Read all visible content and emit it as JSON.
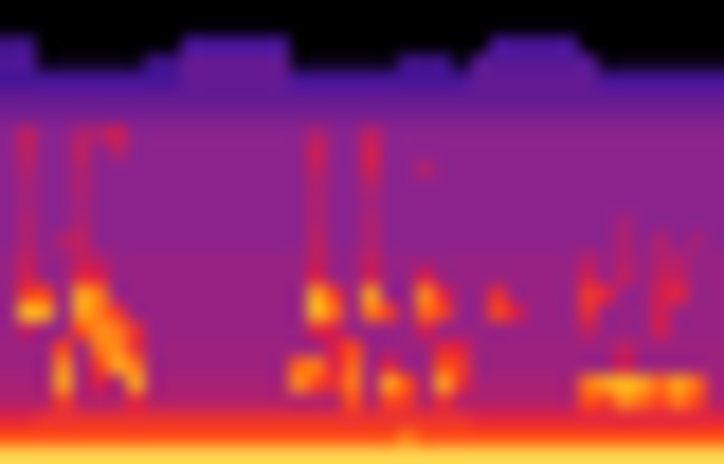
{
  "chart_data": {
    "type": "heatmap",
    "tick_labels": false,
    "grid": false,
    "zlim": [
      0,
      100
    ],
    "cells": [
      [
        0,
        0,
        0,
        0,
        0,
        0,
        0,
        0,
        0,
        0,
        0,
        0,
        0,
        0,
        0,
        0,
        0,
        0,
        0,
        0,
        0,
        0,
        0,
        0,
        0,
        0,
        0,
        0,
        0,
        0,
        0,
        0,
        0,
        0,
        0,
        0,
        0,
        0,
        0,
        0
      ],
      [
        0,
        0,
        0,
        0,
        0,
        0,
        0,
        0,
        0,
        0,
        0,
        0,
        0,
        0,
        0,
        0,
        0,
        0,
        0,
        0,
        0,
        0,
        0,
        0,
        0,
        0,
        0,
        0,
        0,
        0,
        0,
        0,
        0,
        0,
        0,
        0,
        0,
        0,
        0,
        0
      ],
      [
        25,
        25,
        0,
        0,
        0,
        0,
        0,
        0,
        0,
        0,
        28,
        28,
        28,
        28,
        28,
        28,
        0,
        0,
        0,
        0,
        0,
        0,
        0,
        0,
        0,
        0,
        0,
        28,
        28,
        28,
        28,
        28,
        0,
        0,
        0,
        0,
        0,
        0,
        0,
        0
      ],
      [
        30,
        30,
        5,
        5,
        5,
        5,
        5,
        5,
        25,
        25,
        35,
        35,
        35,
        35,
        35,
        35,
        5,
        5,
        5,
        5,
        5,
        5,
        25,
        25,
        25,
        5,
        32,
        32,
        32,
        32,
        32,
        32,
        32,
        5,
        5,
        5,
        5,
        5,
        5,
        5
      ],
      [
        28,
        28,
        28,
        28,
        28,
        28,
        28,
        28,
        28,
        28,
        35,
        35,
        35,
        35,
        35,
        35,
        28,
        28,
        28,
        28,
        28,
        28,
        28,
        28,
        28,
        28,
        35,
        35,
        35,
        35,
        35,
        35,
        35,
        28,
        28,
        28,
        28,
        28,
        28,
        28
      ],
      [
        35,
        35,
        35,
        35,
        35,
        35,
        35,
        35,
        35,
        35,
        35,
        35,
        35,
        35,
        35,
        35,
        35,
        35,
        35,
        35,
        35,
        35,
        35,
        35,
        35,
        35,
        35,
        35,
        35,
        35,
        35,
        35,
        35,
        35,
        35,
        35,
        35,
        35,
        35,
        35
      ],
      [
        40,
        40,
        40,
        40,
        40,
        40,
        40,
        40,
        40,
        40,
        40,
        40,
        40,
        40,
        40,
        40,
        40,
        40,
        40,
        40,
        40,
        40,
        40,
        40,
        40,
        40,
        40,
        40,
        40,
        40,
        40,
        40,
        40,
        40,
        40,
        40,
        40,
        40,
        40,
        40
      ],
      [
        45,
        55,
        45,
        45,
        52,
        52,
        58,
        45,
        45,
        45,
        45,
        45,
        45,
        45,
        45,
        45,
        45,
        52,
        45,
        45,
        55,
        45,
        45,
        45,
        45,
        45,
        45,
        45,
        45,
        45,
        45,
        45,
        45,
        45,
        45,
        45,
        45,
        45,
        45,
        45
      ],
      [
        45,
        55,
        45,
        45,
        55,
        45,
        52,
        45,
        45,
        45,
        45,
        45,
        45,
        45,
        45,
        45,
        45,
        58,
        45,
        45,
        60,
        45,
        45,
        45,
        45,
        45,
        45,
        45,
        45,
        45,
        45,
        45,
        45,
        45,
        45,
        45,
        45,
        45,
        45,
        45
      ],
      [
        45,
        52,
        45,
        45,
        52,
        45,
        45,
        45,
        45,
        45,
        45,
        45,
        45,
        45,
        45,
        45,
        45,
        55,
        45,
        45,
        58,
        45,
        45,
        52,
        45,
        45,
        45,
        45,
        45,
        45,
        45,
        45,
        45,
        45,
        45,
        45,
        45,
        45,
        45,
        45
      ],
      [
        45,
        50,
        45,
        45,
        52,
        45,
        45,
        45,
        45,
        45,
        45,
        45,
        45,
        45,
        45,
        45,
        45,
        52,
        45,
        45,
        52,
        45,
        45,
        45,
        45,
        45,
        45,
        45,
        45,
        45,
        45,
        45,
        45,
        45,
        45,
        45,
        45,
        45,
        45,
        45
      ],
      [
        45,
        50,
        45,
        45,
        50,
        45,
        45,
        45,
        45,
        45,
        45,
        45,
        45,
        45,
        45,
        45,
        45,
        52,
        45,
        45,
        50,
        45,
        45,
        45,
        45,
        45,
        45,
        45,
        45,
        45,
        45,
        45,
        45,
        45,
        45,
        45,
        45,
        45,
        45,
        45
      ],
      [
        45,
        52,
        45,
        45,
        52,
        45,
        45,
        45,
        45,
        45,
        45,
        45,
        45,
        45,
        45,
        45,
        45,
        52,
        45,
        45,
        52,
        45,
        45,
        45,
        45,
        45,
        45,
        45,
        45,
        45,
        45,
        45,
        45,
        45,
        50,
        45,
        45,
        45,
        45,
        45
      ],
      [
        45,
        52,
        45,
        52,
        55,
        45,
        45,
        45,
        45,
        45,
        45,
        45,
        45,
        45,
        45,
        45,
        45,
        55,
        45,
        45,
        52,
        45,
        45,
        45,
        45,
        45,
        45,
        45,
        45,
        45,
        45,
        45,
        45,
        45,
        52,
        45,
        52,
        45,
        50,
        45
      ],
      [
        47,
        55,
        47,
        47,
        55,
        52,
        47,
        47,
        47,
        47,
        47,
        47,
        47,
        47,
        47,
        47,
        47,
        55,
        47,
        47,
        55,
        47,
        47,
        47,
        47,
        47,
        47,
        47,
        47,
        47,
        47,
        47,
        52,
        47,
        52,
        47,
        52,
        52,
        47,
        47
      ],
      [
        47,
        58,
        47,
        47,
        62,
        60,
        47,
        47,
        47,
        47,
        47,
        47,
        47,
        47,
        47,
        47,
        47,
        60,
        47,
        47,
        58,
        47,
        47,
        60,
        47,
        47,
        47,
        47,
        47,
        47,
        47,
        47,
        58,
        47,
        55,
        47,
        55,
        55,
        47,
        47
      ],
      [
        47,
        70,
        72,
        47,
        85,
        80,
        47,
        47,
        47,
        47,
        47,
        47,
        47,
        47,
        47,
        47,
        47,
        85,
        70,
        47,
        85,
        47,
        47,
        82,
        62,
        47,
        47,
        65,
        47,
        47,
        47,
        47,
        68,
        62,
        47,
        47,
        58,
        62,
        47,
        47
      ],
      [
        47,
        88,
        85,
        47,
        85,
        80,
        68,
        47,
        47,
        47,
        47,
        47,
        47,
        47,
        47,
        47,
        47,
        88,
        78,
        47,
        80,
        70,
        47,
        78,
        70,
        47,
        47,
        72,
        60,
        47,
        47,
        47,
        65,
        47,
        47,
        47,
        58,
        47,
        47,
        47
      ],
      [
        47,
        55,
        47,
        47,
        75,
        82,
        80,
        65,
        47,
        47,
        47,
        47,
        47,
        47,
        47,
        47,
        47,
        62,
        58,
        47,
        47,
        47,
        47,
        58,
        47,
        47,
        47,
        47,
        47,
        47,
        47,
        47,
        55,
        47,
        47,
        47,
        58,
        47,
        47,
        47
      ],
      [
        48,
        48,
        48,
        72,
        48,
        80,
        82,
        65,
        48,
        48,
        48,
        48,
        48,
        48,
        48,
        48,
        48,
        48,
        60,
        72,
        48,
        48,
        48,
        48,
        62,
        60,
        48,
        48,
        48,
        48,
        48,
        48,
        48,
        48,
        55,
        48,
        48,
        48,
        48,
        48
      ],
      [
        48,
        48,
        48,
        82,
        48,
        70,
        85,
        80,
        48,
        48,
        48,
        48,
        48,
        48,
        48,
        48,
        78,
        80,
        60,
        78,
        48,
        62,
        48,
        48,
        75,
        68,
        48,
        48,
        48,
        48,
        48,
        48,
        48,
        48,
        58,
        48,
        48,
        48,
        48,
        48
      ],
      [
        50,
        50,
        50,
        85,
        50,
        60,
        50,
        85,
        50,
        50,
        50,
        50,
        50,
        50,
        50,
        50,
        82,
        72,
        65,
        80,
        50,
        85,
        75,
        50,
        85,
        65,
        50,
        50,
        50,
        50,
        50,
        50,
        80,
        85,
        88,
        85,
        78,
        85,
        78,
        50
      ],
      [
        52,
        52,
        52,
        70,
        52,
        52,
        52,
        62,
        52,
        52,
        52,
        52,
        52,
        52,
        52,
        52,
        52,
        52,
        52,
        75,
        52,
        72,
        68,
        52,
        65,
        52,
        52,
        52,
        52,
        52,
        52,
        52,
        75,
        70,
        82,
        78,
        72,
        80,
        72,
        52
      ],
      [
        62,
        62,
        66,
        66,
        66,
        66,
        66,
        66,
        66,
        66,
        66,
        66,
        66,
        66,
        66,
        66,
        66,
        66,
        66,
        66,
        66,
        66,
        66,
        66,
        66,
        66,
        62,
        62,
        62,
        62,
        62,
        62,
        62,
        62,
        62,
        62,
        62,
        62,
        62,
        62
      ],
      [
        75,
        75,
        75,
        75,
        75,
        75,
        75,
        75,
        75,
        75,
        75,
        75,
        75,
        75,
        75,
        75,
        75,
        75,
        75,
        75,
        75,
        75,
        80,
        75,
        75,
        75,
        75,
        75,
        75,
        75,
        75,
        75,
        75,
        75,
        75,
        75,
        75,
        75,
        75,
        75
      ],
      [
        92,
        92,
        92,
        92,
        92,
        92,
        92,
        92,
        92,
        92,
        92,
        92,
        92,
        92,
        92,
        92,
        92,
        92,
        92,
        92,
        92,
        92,
        92,
        92,
        92,
        92,
        92,
        92,
        92,
        92,
        92,
        92,
        92,
        92,
        92,
        92,
        92,
        92,
        92,
        92
      ]
    ]
  }
}
